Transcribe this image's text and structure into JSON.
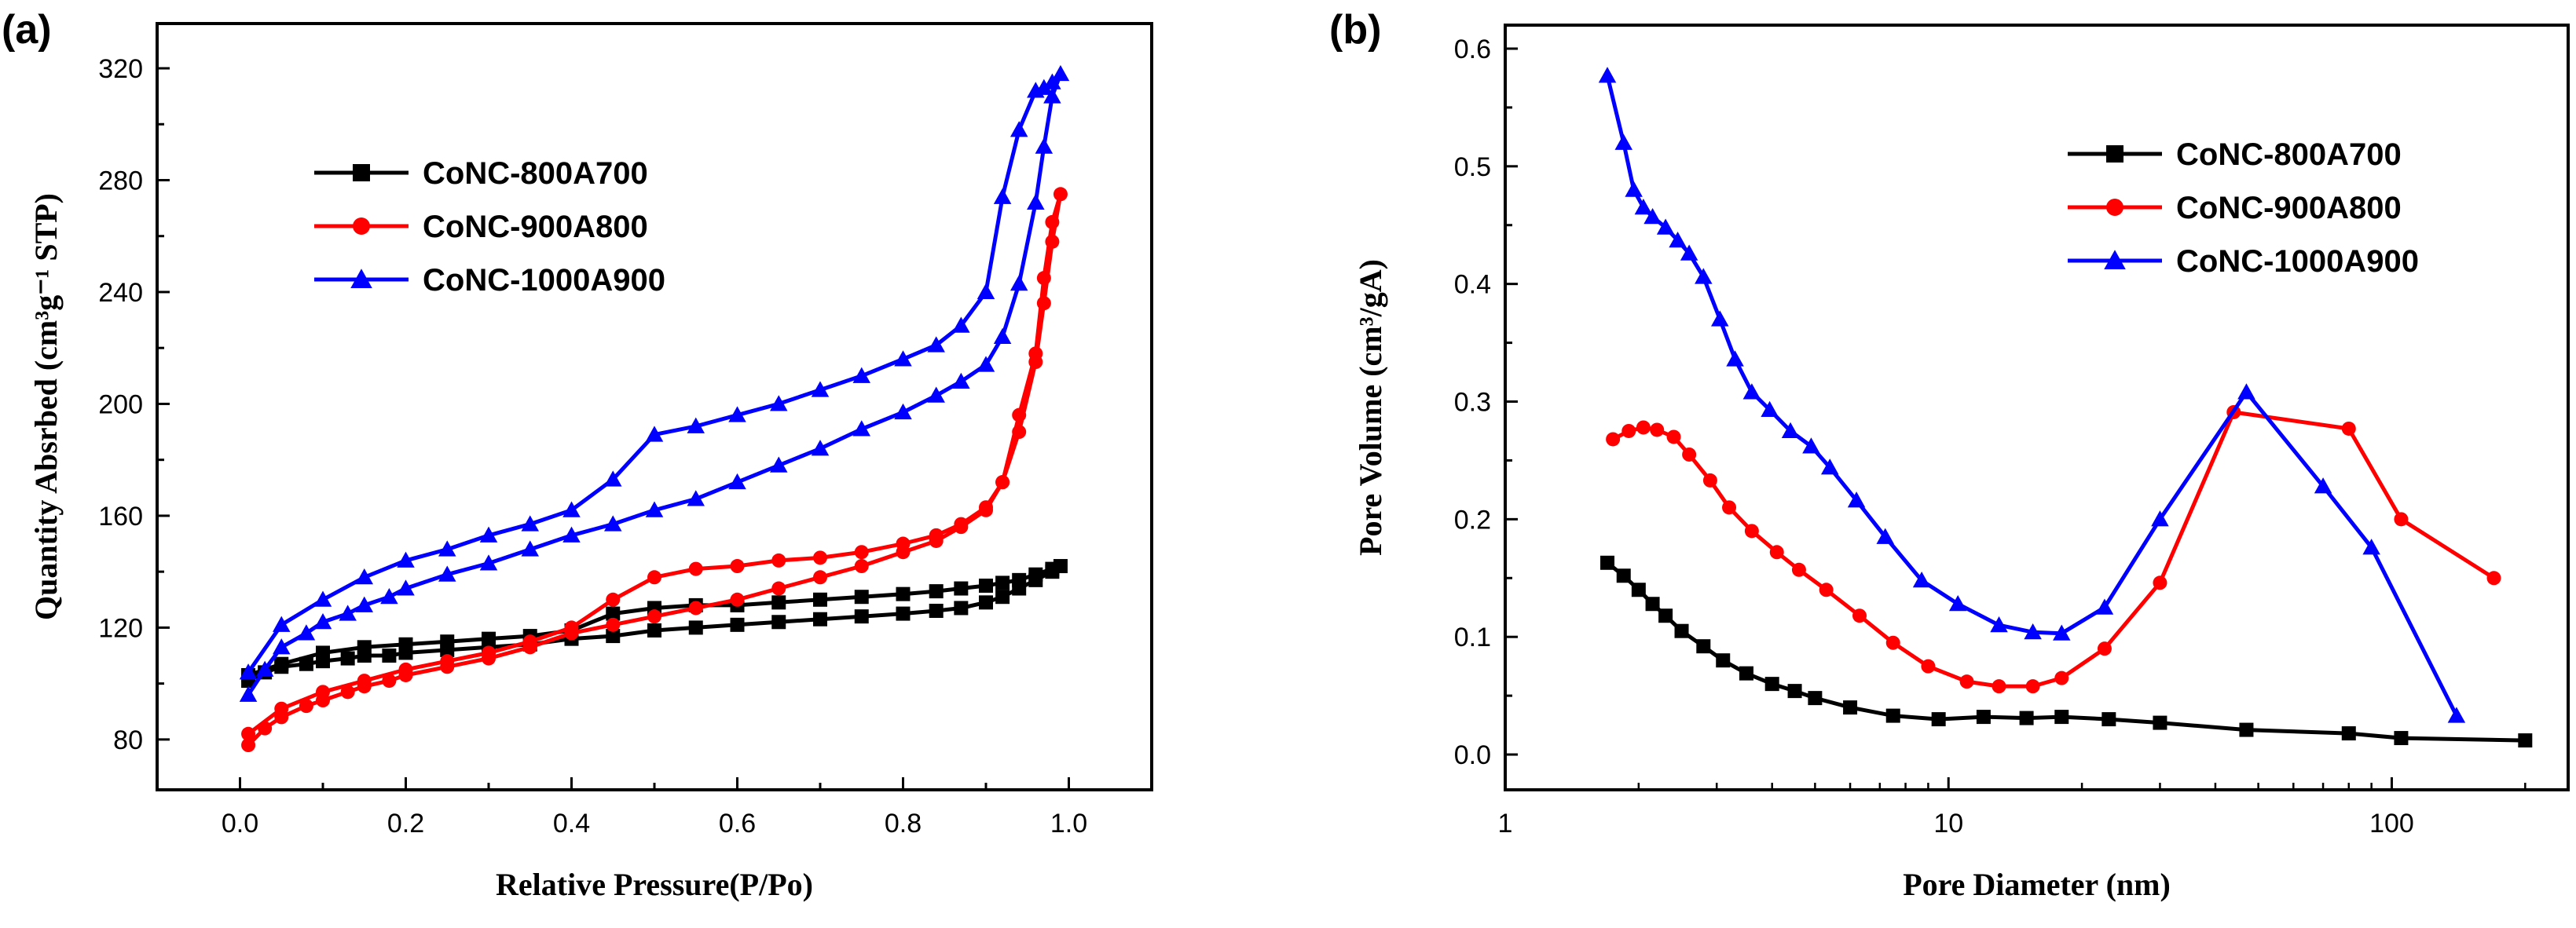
{
  "chart_data": [
    {
      "panel_label": "(a)",
      "type": "line",
      "xlabel": "Relative Pressure(P/Po)",
      "ylabel": "Quantity Absrbed (cm³g⁻¹ STP)",
      "xlim": [
        -0.1,
        1.1
      ],
      "ylim": [
        62,
        336
      ],
      "xticks": [
        0.0,
        0.2,
        0.4,
        0.6,
        0.8,
        1.0
      ],
      "xtick_labels": [
        "0.0",
        "0.2",
        "0.4",
        "0.6",
        "0.8",
        "1.0"
      ],
      "yticks": [
        80,
        120,
        160,
        200,
        240,
        280,
        320
      ],
      "ytick_labels": [
        "80",
        "120",
        "160",
        "200",
        "240",
        "280",
        "320"
      ],
      "legend_position": "upper-left",
      "series": [
        {
          "name": "CoNC-800A700",
          "color": "#000000",
          "marker": "square",
          "x": [
            0.01,
            0.03,
            0.05,
            0.08,
            0.1,
            0.13,
            0.15,
            0.18,
            0.2,
            0.25,
            0.3,
            0.35,
            0.4,
            0.45,
            0.5,
            0.55,
            0.6,
            0.65,
            0.7,
            0.75,
            0.8,
            0.84,
            0.87,
            0.9,
            0.92,
            0.94,
            0.96,
            0.98,
            0.99,
            0.98,
            0.96,
            0.94,
            0.92,
            0.9,
            0.87,
            0.84,
            0.8,
            0.75,
            0.7,
            0.65,
            0.6,
            0.55,
            0.5,
            0.45,
            0.4,
            0.35,
            0.3,
            0.25,
            0.2,
            0.15,
            0.1,
            0.05,
            0.01
          ],
          "y": [
            101,
            104,
            106,
            107,
            108,
            109,
            110,
            110,
            111,
            112,
            113,
            114,
            116,
            117,
            119,
            120,
            121,
            122,
            123,
            124,
            125,
            126,
            127,
            129,
            131,
            134,
            137,
            140,
            142,
            141,
            139,
            137,
            136,
            135,
            134,
            133,
            132,
            131,
            130,
            129,
            128,
            128,
            127,
            125,
            119,
            117,
            116,
            115,
            114,
            113,
            111,
            107,
            103
          ]
        },
        {
          "name": "CoNC-900A800",
          "color": "#ff0000",
          "marker": "circle",
          "x": [
            0.01,
            0.03,
            0.05,
            0.08,
            0.1,
            0.13,
            0.15,
            0.18,
            0.2,
            0.25,
            0.3,
            0.35,
            0.4,
            0.45,
            0.5,
            0.55,
            0.6,
            0.65,
            0.7,
            0.75,
            0.8,
            0.84,
            0.87,
            0.9,
            0.92,
            0.94,
            0.96,
            0.97,
            0.98,
            0.99,
            0.98,
            0.97,
            0.96,
            0.94,
            0.92,
            0.9,
            0.87,
            0.84,
            0.8,
            0.75,
            0.7,
            0.65,
            0.6,
            0.55,
            0.5,
            0.45,
            0.4,
            0.35,
            0.3,
            0.25,
            0.2,
            0.15,
            0.1,
            0.05,
            0.01
          ],
          "y": [
            78,
            84,
            88,
            92,
            94,
            97,
            99,
            101,
            103,
            106,
            109,
            113,
            118,
            121,
            124,
            127,
            130,
            134,
            138,
            142,
            147,
            151,
            156,
            162,
            172,
            190,
            215,
            236,
            258,
            275,
            265,
            245,
            218,
            196,
            172,
            163,
            157,
            153,
            150,
            147,
            145,
            144,
            142,
            141,
            138,
            130,
            120,
            115,
            111,
            108,
            105,
            101,
            97,
            91,
            82
          ]
        },
        {
          "name": "CoNC-1000A900",
          "color": "#0000ff",
          "marker": "triangle",
          "x": [
            0.01,
            0.03,
            0.05,
            0.08,
            0.1,
            0.13,
            0.15,
            0.18,
            0.2,
            0.25,
            0.3,
            0.35,
            0.4,
            0.45,
            0.5,
            0.55,
            0.6,
            0.65,
            0.7,
            0.75,
            0.8,
            0.84,
            0.87,
            0.9,
            0.92,
            0.94,
            0.96,
            0.97,
            0.98,
            0.99,
            0.98,
            0.97,
            0.96,
            0.94,
            0.92,
            0.9,
            0.87,
            0.84,
            0.8,
            0.75,
            0.7,
            0.65,
            0.6,
            0.55,
            0.5,
            0.45,
            0.4,
            0.35,
            0.3,
            0.25,
            0.2,
            0.15,
            0.1,
            0.05,
            0.01
          ],
          "y": [
            96,
            105,
            113,
            118,
            122,
            125,
            128,
            131,
            134,
            139,
            143,
            148,
            153,
            157,
            162,
            166,
            172,
            178,
            184,
            191,
            197,
            203,
            208,
            214,
            224,
            243,
            272,
            292,
            310,
            318,
            315,
            313,
            312,
            298,
            274,
            240,
            228,
            221,
            216,
            210,
            205,
            200,
            196,
            192,
            189,
            173,
            162,
            157,
            153,
            148,
            144,
            138,
            130,
            121,
            104
          ]
        }
      ]
    },
    {
      "panel_label": "(b)",
      "type": "line",
      "xscale": "log",
      "xlabel": "Pore Diameter (nm)",
      "ylabel": "Pore Volume (cm³/gA)",
      "xlim": [
        1,
        250
      ],
      "ylim": [
        -0.03,
        0.62
      ],
      "xticks": [
        1,
        10,
        100
      ],
      "xtick_labels": [
        "1",
        "10",
        "100"
      ],
      "yticks": [
        0.0,
        0.1,
        0.2,
        0.3,
        0.4,
        0.5,
        0.6
      ],
      "ytick_labels": [
        "0.0",
        "0.1",
        "0.2",
        "0.3",
        "0.4",
        "0.5",
        "0.6"
      ],
      "legend_position": "upper-right",
      "series": [
        {
          "name": "CoNC-800A700",
          "color": "#000000",
          "marker": "square",
          "x": [
            1.7,
            1.85,
            2.0,
            2.15,
            2.3,
            2.5,
            2.8,
            3.1,
            3.5,
            4.0,
            4.5,
            5.0,
            6.0,
            7.5,
            9.5,
            12,
            15,
            18,
            23,
            30,
            47,
            80,
            105,
            200
          ],
          "y": [
            0.163,
            0.152,
            0.14,
            0.128,
            0.118,
            0.105,
            0.092,
            0.08,
            0.069,
            0.06,
            0.054,
            0.048,
            0.04,
            0.033,
            0.03,
            0.032,
            0.031,
            0.032,
            0.03,
            0.027,
            0.021,
            0.018,
            0.014,
            0.012
          ]
        },
        {
          "name": "CoNC-900A800",
          "color": "#ff0000",
          "marker": "circle",
          "x": [
            1.75,
            1.9,
            2.05,
            2.2,
            2.4,
            2.6,
            2.9,
            3.2,
            3.6,
            4.1,
            4.6,
            5.3,
            6.3,
            7.5,
            9.0,
            11,
            13,
            15.5,
            18,
            22.5,
            30,
            44,
            80,
            105,
            170
          ],
          "y": [
            0.268,
            0.275,
            0.278,
            0.276,
            0.27,
            0.255,
            0.233,
            0.21,
            0.19,
            0.172,
            0.157,
            0.14,
            0.118,
            0.095,
            0.075,
            0.062,
            0.058,
            0.058,
            0.065,
            0.09,
            0.146,
            0.291,
            0.277,
            0.2,
            0.15
          ]
        },
        {
          "name": "CoNC-1000A900",
          "color": "#0000ff",
          "marker": "triangle",
          "x": [
            1.7,
            1.85,
            1.95,
            2.05,
            2.15,
            2.3,
            2.45,
            2.6,
            2.8,
            3.05,
            3.3,
            3.6,
            3.95,
            4.4,
            4.9,
            5.4,
            6.2,
            7.2,
            8.7,
            10.5,
            13,
            15.5,
            18,
            22.5,
            30,
            47,
            70,
            90,
            140
          ],
          "y": [
            0.577,
            0.52,
            0.48,
            0.465,
            0.457,
            0.448,
            0.437,
            0.426,
            0.406,
            0.37,
            0.336,
            0.308,
            0.293,
            0.275,
            0.262,
            0.244,
            0.216,
            0.185,
            0.148,
            0.128,
            0.11,
            0.104,
            0.103,
            0.125,
            0.2,
            0.308,
            0.228,
            0.176,
            0.033
          ]
        }
      ]
    }
  ]
}
